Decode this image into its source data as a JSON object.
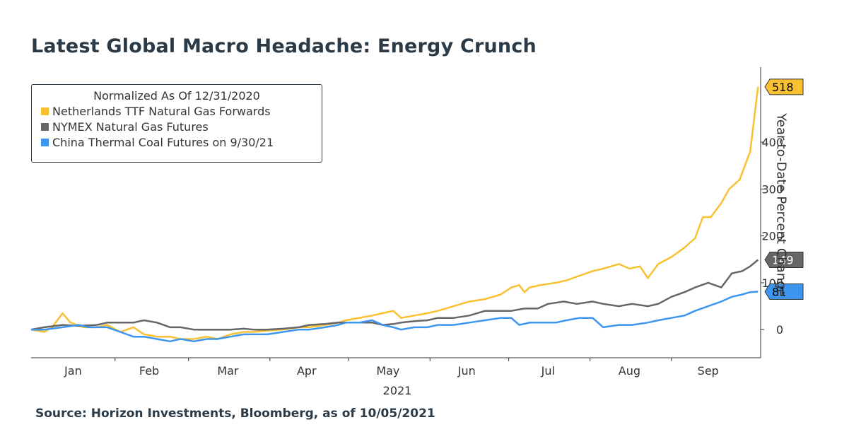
{
  "title": "Latest Global Macro Headache: Energy Crunch",
  "source": "Source: Horizon Investments, Bloomberg, as of 10/05/2021",
  "legend": {
    "title": "Normalized As Of 12/31/2020",
    "items": [
      {
        "label": "Netherlands TTF Natural Gas Forwards",
        "color": "#f9c032"
      },
      {
        "label": "NYMEX Natural Gas Futures",
        "color": "#666666"
      },
      {
        "label": "China Thermal Coal Futures on 9/30/21",
        "color": "#3c96f0"
      }
    ]
  },
  "chart_data": {
    "type": "line",
    "title": "Latest Global Macro Headache: Energy Crunch",
    "xlabel": "2021",
    "ylabel": "Year-to-Date Percent Change",
    "x_ticks": [
      "Jan",
      "Feb",
      "Mar",
      "Apr",
      "May",
      "Jun",
      "Jul",
      "Aug",
      "Sep"
    ],
    "y_ticks": [
      0,
      100,
      200,
      300,
      400
    ],
    "ylim": [
      -60,
      560
    ],
    "x_domain": [
      "2020-12-31",
      "2021-10-05"
    ],
    "grid": false,
    "legend_position": "top-left",
    "end_labels": [
      "518",
      "149",
      "81"
    ],
    "series": [
      {
        "name": "Netherlands TTF Natural Gas Forwards",
        "color": "#f9c032",
        "points": [
          [
            "2020-12-31",
            0
          ],
          [
            "2021-01-05",
            -5
          ],
          [
            "2021-01-08",
            5
          ],
          [
            "2021-01-12",
            35
          ],
          [
            "2021-01-15",
            15
          ],
          [
            "2021-01-20",
            5
          ],
          [
            "2021-01-25",
            5
          ],
          [
            "2021-01-29",
            10
          ],
          [
            "2021-02-03",
            -5
          ],
          [
            "2021-02-08",
            5
          ],
          [
            "2021-02-12",
            -10
          ],
          [
            "2021-02-17",
            -15
          ],
          [
            "2021-02-22",
            -15
          ],
          [
            "2021-02-26",
            -20
          ],
          [
            "2021-03-03",
            -20
          ],
          [
            "2021-03-08",
            -15
          ],
          [
            "2021-03-12",
            -20
          ],
          [
            "2021-03-17",
            -10
          ],
          [
            "2021-03-22",
            -5
          ],
          [
            "2021-03-26",
            -5
          ],
          [
            "2021-03-31",
            -2
          ],
          [
            "2021-04-06",
            0
          ],
          [
            "2021-04-12",
            5
          ],
          [
            "2021-04-16",
            5
          ],
          [
            "2021-04-22",
            10
          ],
          [
            "2021-04-27",
            15
          ],
          [
            "2021-04-30",
            20
          ],
          [
            "2021-05-05",
            25
          ],
          [
            "2021-05-10",
            30
          ],
          [
            "2021-05-14",
            35
          ],
          [
            "2021-05-18",
            40
          ],
          [
            "2021-05-21",
            25
          ],
          [
            "2021-05-26",
            30
          ],
          [
            "2021-05-31",
            35
          ],
          [
            "2021-06-04",
            40
          ],
          [
            "2021-06-10",
            50
          ],
          [
            "2021-06-16",
            60
          ],
          [
            "2021-06-22",
            65
          ],
          [
            "2021-06-28",
            75
          ],
          [
            "2021-07-02",
            90
          ],
          [
            "2021-07-05",
            95
          ],
          [
            "2021-07-07",
            80
          ],
          [
            "2021-07-09",
            90
          ],
          [
            "2021-07-13",
            95
          ],
          [
            "2021-07-19",
            100
          ],
          [
            "2021-07-23",
            105
          ],
          [
            "2021-07-28",
            115
          ],
          [
            "2021-08-02",
            125
          ],
          [
            "2021-08-06",
            130
          ],
          [
            "2021-08-12",
            140
          ],
          [
            "2021-08-16",
            130
          ],
          [
            "2021-08-20",
            135
          ],
          [
            "2021-08-23",
            110
          ],
          [
            "2021-08-27",
            140
          ],
          [
            "2021-09-01",
            155
          ],
          [
            "2021-09-06",
            175
          ],
          [
            "2021-09-10",
            195
          ],
          [
            "2021-09-13",
            240
          ],
          [
            "2021-09-16",
            240
          ],
          [
            "2021-09-20",
            270
          ],
          [
            "2021-09-23",
            300
          ],
          [
            "2021-09-27",
            320
          ],
          [
            "2021-10-01",
            380
          ],
          [
            "2021-10-04",
            518
          ]
        ]
      },
      {
        "name": "NYMEX Natural Gas Futures",
        "color": "#666666",
        "points": [
          [
            "2020-12-31",
            0
          ],
          [
            "2021-01-05",
            5
          ],
          [
            "2021-01-12",
            10
          ],
          [
            "2021-01-18",
            8
          ],
          [
            "2021-01-25",
            10
          ],
          [
            "2021-01-29",
            15
          ],
          [
            "2021-02-03",
            15
          ],
          [
            "2021-02-08",
            15
          ],
          [
            "2021-02-12",
            20
          ],
          [
            "2021-02-17",
            15
          ],
          [
            "2021-02-22",
            5
          ],
          [
            "2021-02-26",
            5
          ],
          [
            "2021-03-03",
            0
          ],
          [
            "2021-03-08",
            0
          ],
          [
            "2021-03-12",
            0
          ],
          [
            "2021-03-17",
            0
          ],
          [
            "2021-03-22",
            2
          ],
          [
            "2021-03-26",
            0
          ],
          [
            "2021-03-31",
            0
          ],
          [
            "2021-04-06",
            2
          ],
          [
            "2021-04-12",
            5
          ],
          [
            "2021-04-16",
            10
          ],
          [
            "2021-04-22",
            12
          ],
          [
            "2021-04-27",
            15
          ],
          [
            "2021-04-30",
            15
          ],
          [
            "2021-05-05",
            15
          ],
          [
            "2021-05-10",
            15
          ],
          [
            "2021-05-14",
            10
          ],
          [
            "2021-05-18",
            12
          ],
          [
            "2021-05-21",
            15
          ],
          [
            "2021-05-26",
            18
          ],
          [
            "2021-05-31",
            20
          ],
          [
            "2021-06-04",
            25
          ],
          [
            "2021-06-10",
            25
          ],
          [
            "2021-06-16",
            30
          ],
          [
            "2021-06-22",
            40
          ],
          [
            "2021-06-28",
            40
          ],
          [
            "2021-07-02",
            40
          ],
          [
            "2021-07-07",
            45
          ],
          [
            "2021-07-12",
            45
          ],
          [
            "2021-07-16",
            55
          ],
          [
            "2021-07-22",
            60
          ],
          [
            "2021-07-27",
            55
          ],
          [
            "2021-08-02",
            60
          ],
          [
            "2021-08-06",
            55
          ],
          [
            "2021-08-12",
            50
          ],
          [
            "2021-08-17",
            55
          ],
          [
            "2021-08-23",
            50
          ],
          [
            "2021-08-27",
            55
          ],
          [
            "2021-09-01",
            70
          ],
          [
            "2021-09-06",
            80
          ],
          [
            "2021-09-10",
            90
          ],
          [
            "2021-09-15",
            100
          ],
          [
            "2021-09-20",
            90
          ],
          [
            "2021-09-24",
            120
          ],
          [
            "2021-09-28",
            125
          ],
          [
            "2021-10-01",
            135
          ],
          [
            "2021-10-04",
            149
          ]
        ]
      },
      {
        "name": "China Thermal Coal Futures on 9/30/21",
        "color": "#3c96f0",
        "points": [
          [
            "2020-12-31",
            0
          ],
          [
            "2021-01-05",
            0
          ],
          [
            "2021-01-12",
            5
          ],
          [
            "2021-01-18",
            10
          ],
          [
            "2021-01-22",
            5
          ],
          [
            "2021-01-29",
            5
          ],
          [
            "2021-02-03",
            -5
          ],
          [
            "2021-02-08",
            -15
          ],
          [
            "2021-02-12",
            -15
          ],
          [
            "2021-02-17",
            -20
          ],
          [
            "2021-02-22",
            -25
          ],
          [
            "2021-02-26",
            -20
          ],
          [
            "2021-03-03",
            -25
          ],
          [
            "2021-03-08",
            -20
          ],
          [
            "2021-03-12",
            -20
          ],
          [
            "2021-03-17",
            -15
          ],
          [
            "2021-03-22",
            -10
          ],
          [
            "2021-03-26",
            -10
          ],
          [
            "2021-03-31",
            -10
          ],
          [
            "2021-04-06",
            -5
          ],
          [
            "2021-04-12",
            0
          ],
          [
            "2021-04-16",
            0
          ],
          [
            "2021-04-22",
            5
          ],
          [
            "2021-04-27",
            10
          ],
          [
            "2021-04-30",
            15
          ],
          [
            "2021-05-05",
            15
          ],
          [
            "2021-05-10",
            20
          ],
          [
            "2021-05-14",
            10
          ],
          [
            "2021-05-18",
            5
          ],
          [
            "2021-05-21",
            0
          ],
          [
            "2021-05-26",
            5
          ],
          [
            "2021-05-31",
            5
          ],
          [
            "2021-06-04",
            10
          ],
          [
            "2021-06-10",
            10
          ],
          [
            "2021-06-16",
            15
          ],
          [
            "2021-06-22",
            20
          ],
          [
            "2021-06-28",
            25
          ],
          [
            "2021-07-02",
            25
          ],
          [
            "2021-07-05",
            10
          ],
          [
            "2021-07-09",
            15
          ],
          [
            "2021-07-13",
            15
          ],
          [
            "2021-07-19",
            15
          ],
          [
            "2021-07-23",
            20
          ],
          [
            "2021-07-28",
            25
          ],
          [
            "2021-08-02",
            25
          ],
          [
            "2021-08-06",
            5
          ],
          [
            "2021-08-12",
            10
          ],
          [
            "2021-08-17",
            10
          ],
          [
            "2021-08-23",
            15
          ],
          [
            "2021-08-27",
            20
          ],
          [
            "2021-09-01",
            25
          ],
          [
            "2021-09-06",
            30
          ],
          [
            "2021-09-10",
            40
          ],
          [
            "2021-09-15",
            50
          ],
          [
            "2021-09-20",
            60
          ],
          [
            "2021-09-24",
            70
          ],
          [
            "2021-09-28",
            75
          ],
          [
            "2021-10-01",
            80
          ],
          [
            "2021-10-04",
            81
          ]
        ]
      }
    ]
  }
}
